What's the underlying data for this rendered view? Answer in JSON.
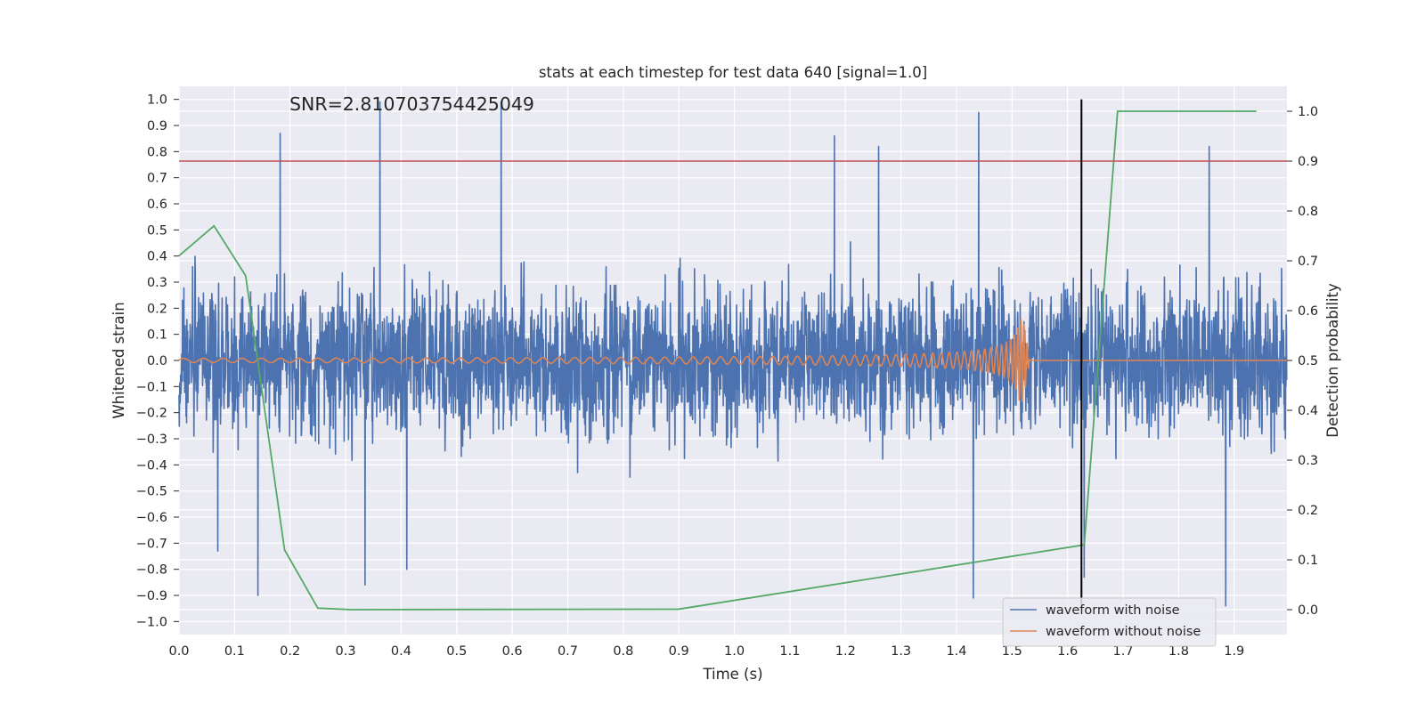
{
  "chart_data": {
    "type": "line",
    "title": "stats at each timestep for test data 640 [signal=1.0]",
    "annotation": "SNR=2.810703754425049",
    "xlabel": "Time (s)",
    "ylabel": "Whitened strain",
    "y2label": "Detection probability",
    "xlim": [
      0.0,
      1.995
    ],
    "ylim": [
      -1.05,
      1.05
    ],
    "y2lim": [
      -0.05,
      1.05
    ],
    "xticks": [
      "0.0",
      "0.1",
      "0.2",
      "0.3",
      "0.4",
      "0.5",
      "0.6",
      "0.7",
      "0.8",
      "0.9",
      "1.0",
      "1.1",
      "1.2",
      "1.3",
      "1.4",
      "1.5",
      "1.6",
      "1.7",
      "1.8",
      "1.9"
    ],
    "yticks": [
      "1.0",
      "0.9",
      "0.8",
      "0.7",
      "0.6",
      "0.5",
      "0.4",
      "0.3",
      "0.2",
      "0.1",
      "0.0",
      "−0.1",
      "−0.2",
      "−0.3",
      "−0.4",
      "−0.5",
      "−0.6",
      "−0.7",
      "−0.8",
      "−0.9",
      "−1.0"
    ],
    "y2ticks": [
      "1.0",
      "0.9",
      "0.8",
      "0.7",
      "0.6",
      "0.5",
      "0.4",
      "0.3",
      "0.2",
      "0.1",
      "0.0"
    ],
    "grid": true,
    "legend_placement": "lower-right",
    "series": [
      {
        "name": "waveform with noise",
        "color": "#4c72b0",
        "axis": "left",
        "sample_rate_hz": 2048,
        "duration_s": 2.0,
        "rms_amplitude": 0.28,
        "peak_points": [
          {
            "x": 0.182,
            "y": 0.87
          },
          {
            "x": 0.362,
            "y": 0.99
          },
          {
            "x": 0.58,
            "y": 0.99
          },
          {
            "x": 1.44,
            "y": 0.95
          },
          {
            "x": 1.26,
            "y": 0.82
          },
          {
            "x": 1.18,
            "y": 0.86
          },
          {
            "x": 1.855,
            "y": 0.82
          },
          {
            "x": 0.142,
            "y": -0.9
          },
          {
            "x": 1.43,
            "y": -0.91
          },
          {
            "x": 1.885,
            "y": -0.94
          },
          {
            "x": 0.335,
            "y": -0.86
          },
          {
            "x": 1.63,
            "y": -0.83
          },
          {
            "x": 0.07,
            "y": -0.73
          },
          {
            "x": 0.41,
            "y": -0.8
          }
        ]
      },
      {
        "name": "waveform without noise",
        "color": "#dd8452",
        "axis": "left",
        "chirp": {
          "t_merger": 1.52,
          "f_start_hz": 28,
          "f_end_hz": 180,
          "amp_start": 0.008,
          "amp_peak": 0.16
        }
      },
      {
        "name": "detection probability",
        "color": "#55a868",
        "axis": "right",
        "x": [
          0.0,
          0.063,
          0.12,
          0.19,
          0.25,
          0.31,
          0.9,
          1.63,
          1.69,
          1.94
        ],
        "values": [
          0.71,
          0.77,
          0.67,
          0.12,
          0.003,
          0.0,
          0.001,
          0.13,
          1.0,
          1.0
        ]
      }
    ],
    "threshold_line": {
      "axis": "right",
      "value": 0.9,
      "color": "#c44e52"
    },
    "vertical_line": {
      "x": 1.625,
      "y_from": -0.95,
      "y_to": 1.0,
      "color": "#000000"
    }
  },
  "legend": {
    "items": [
      {
        "label": "waveform with noise",
        "color": "#4c72b0"
      },
      {
        "label": "waveform without noise",
        "color": "#dd8452"
      }
    ]
  },
  "colors": {
    "plot_background": "#eaeaf2",
    "grid": "#ffffff",
    "text": "#262626"
  }
}
